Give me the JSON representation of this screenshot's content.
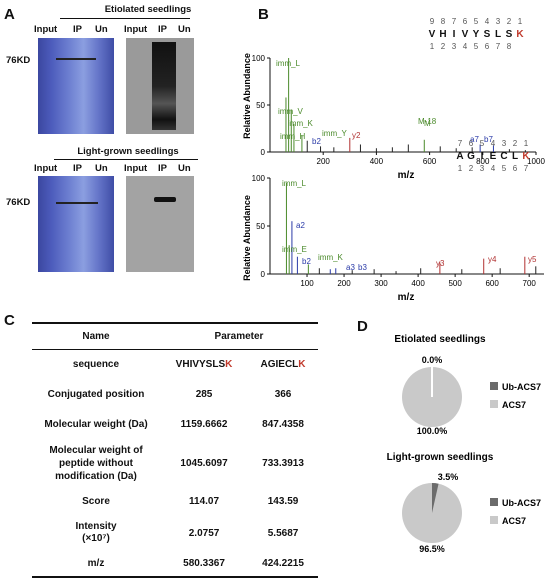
{
  "panel_labels": {
    "a": "A",
    "b": "B",
    "c": "C",
    "d": "D"
  },
  "panel_a": {
    "etiolated_title": "Etiolated seedlings",
    "light_title": "Light-grown seedlings",
    "lane_labels": [
      "Input",
      "IP",
      "Un"
    ],
    "marker": "76KD"
  },
  "panel_b": {
    "ylabel": "Relative Abundance",
    "xlabel": "m/z",
    "spec1": {
      "seq_top_nums": [
        "9",
        "8",
        "7",
        "6",
        "5",
        "4",
        "3",
        "2",
        "1"
      ],
      "seq_letters": [
        "V",
        "H",
        "I",
        "V",
        "Y",
        "S",
        "L",
        "S",
        "K"
      ],
      "seq_bot_nums": [
        "1",
        "2",
        "3",
        "4",
        "5",
        "6",
        "7",
        "8"
      ],
      "x_ticks": [
        "200",
        "400",
        "600",
        "800",
        "1000"
      ],
      "y_ticks": [
        "0",
        "50",
        "100"
      ],
      "annotations": [
        "imm_L",
        "imm_V",
        "imm_K",
        "imm_H",
        "imm_Y",
        "y2",
        "M-18",
        "M",
        "a7",
        "b7",
        "b2"
      ]
    },
    "spec2": {
      "seq_top_nums": [
        "7",
        "6",
        "5",
        "4",
        "3",
        "2",
        "1"
      ],
      "seq_letters": [
        "A",
        "G",
        "I",
        "E",
        "C",
        "L",
        "K"
      ],
      "seq_bot_nums": [
        "1",
        "2",
        "3",
        "4",
        "5",
        "6",
        "7"
      ],
      "x_ticks": [
        "100",
        "200",
        "300",
        "400",
        "500",
        "600",
        "700"
      ],
      "y_ticks": [
        "0",
        "50",
        "100"
      ],
      "annotations": [
        "imm_L",
        "a2",
        "imm_E",
        "imm_K",
        "b2",
        "a3",
        "b3",
        "y3",
        "y4",
        "y5"
      ]
    }
  },
  "panel_c": {
    "col_headers": [
      "Name",
      "Parameter"
    ],
    "rows": [
      {
        "name": "sequence",
        "v1": "VHIVYSLS",
        "v1k": "K",
        "v2": "AGIECL",
        "v2k": "K"
      },
      {
        "name": "Conjugated position",
        "v1": "285",
        "v2": "366"
      },
      {
        "name": "Molecular weight (Da)",
        "v1": "1159.6662",
        "v2": "847.4358"
      },
      {
        "name": "Molecular weight of peptide without modification (Da)",
        "v1": "1045.6097",
        "v2": "733.3913"
      },
      {
        "name": "Score",
        "v1": "114.07",
        "v2": "143.59"
      },
      {
        "name": "Intensity",
        "name2": "(×10⁷)",
        "v1": "2.0757",
        "v2": "5.5687"
      },
      {
        "name": "m/z",
        "v1": "580.3367",
        "v2": "424.2215"
      }
    ]
  },
  "panel_d": {
    "charts": [
      {
        "title": "Etiolated seedlings",
        "ub_pct_label": "0.0%",
        "acs_pct_label": "100.0%",
        "ub_fraction": 0.0
      },
      {
        "title": "Light-grown seedlings",
        "ub_pct_label": "3.5%",
        "acs_pct_label": "96.5%",
        "ub_fraction": 0.035
      }
    ],
    "legend": [
      "Ub-ACS7",
      "ACS7"
    ],
    "colors": {
      "ub": "#6b6b6b",
      "acs": "#c9c9c9"
    }
  }
}
